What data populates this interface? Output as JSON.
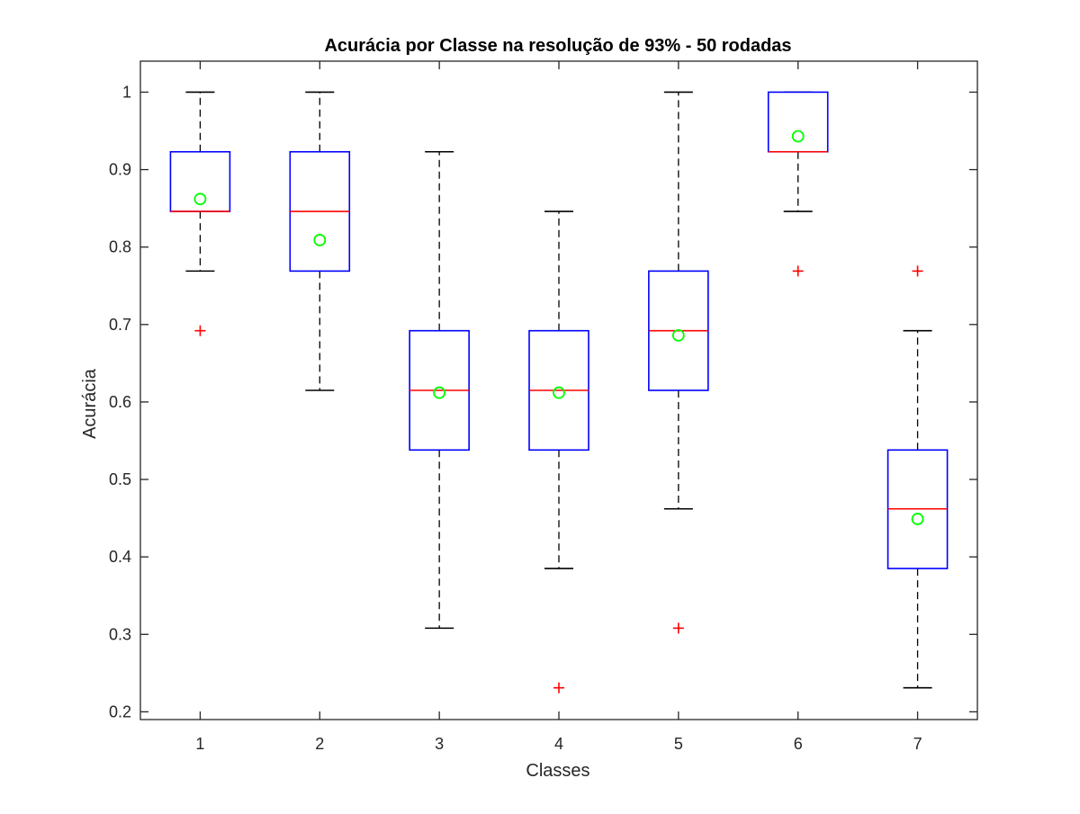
{
  "chart_data": {
    "type": "box",
    "title": "Acurácia por Classe na resolução de 93% - 50 rodadas",
    "xlabel": "Classes",
    "ylabel": "Acurácia",
    "categories": [
      "1",
      "2",
      "3",
      "4",
      "5",
      "6",
      "7"
    ],
    "ylim": [
      0.19,
      1.04
    ],
    "yticks": [
      0.2,
      0.3,
      0.4,
      0.5,
      0.6,
      0.7,
      0.8,
      0.9,
      1
    ],
    "ytick_labels": [
      "0.2",
      "0.3",
      "0.4",
      "0.5",
      "0.6",
      "0.7",
      "0.8",
      "0.9",
      "1"
    ],
    "grid": false,
    "boxes": [
      {
        "category": "1",
        "whisker_low": 0.769,
        "q1": 0.846,
        "median": 0.846,
        "q3": 0.923,
        "whisker_high": 1.0,
        "mean": 0.862,
        "outliers": [
          0.692
        ]
      },
      {
        "category": "2",
        "whisker_low": 0.615,
        "q1": 0.769,
        "median": 0.846,
        "q3": 0.923,
        "whisker_high": 1.0,
        "mean": 0.809,
        "outliers": []
      },
      {
        "category": "3",
        "whisker_low": 0.308,
        "q1": 0.538,
        "median": 0.615,
        "q3": 0.692,
        "whisker_high": 0.923,
        "mean": 0.612,
        "outliers": []
      },
      {
        "category": "4",
        "whisker_low": 0.385,
        "q1": 0.538,
        "median": 0.615,
        "q3": 0.692,
        "whisker_high": 0.846,
        "mean": 0.612,
        "outliers": [
          0.231
        ]
      },
      {
        "category": "5",
        "whisker_low": 0.462,
        "q1": 0.615,
        "median": 0.692,
        "q3": 0.769,
        "whisker_high": 1.0,
        "mean": 0.686,
        "outliers": [
          0.308
        ]
      },
      {
        "category": "6",
        "whisker_low": 0.846,
        "q1": 0.923,
        "median": 0.923,
        "q3": 1.0,
        "whisker_high": 1.0,
        "mean": 0.943,
        "outliers": [
          0.769
        ]
      },
      {
        "category": "7",
        "whisker_low": 0.231,
        "q1": 0.385,
        "median": 0.462,
        "q3": 0.538,
        "whisker_high": 0.692,
        "mean": 0.449,
        "outliers": [
          0.769
        ]
      }
    ],
    "colors": {
      "box": "#0000ff",
      "median": "#ff0000",
      "whisker": "#000000",
      "outlier": "#ff0000",
      "mean": "#00ff00",
      "axes": "#262626"
    }
  }
}
